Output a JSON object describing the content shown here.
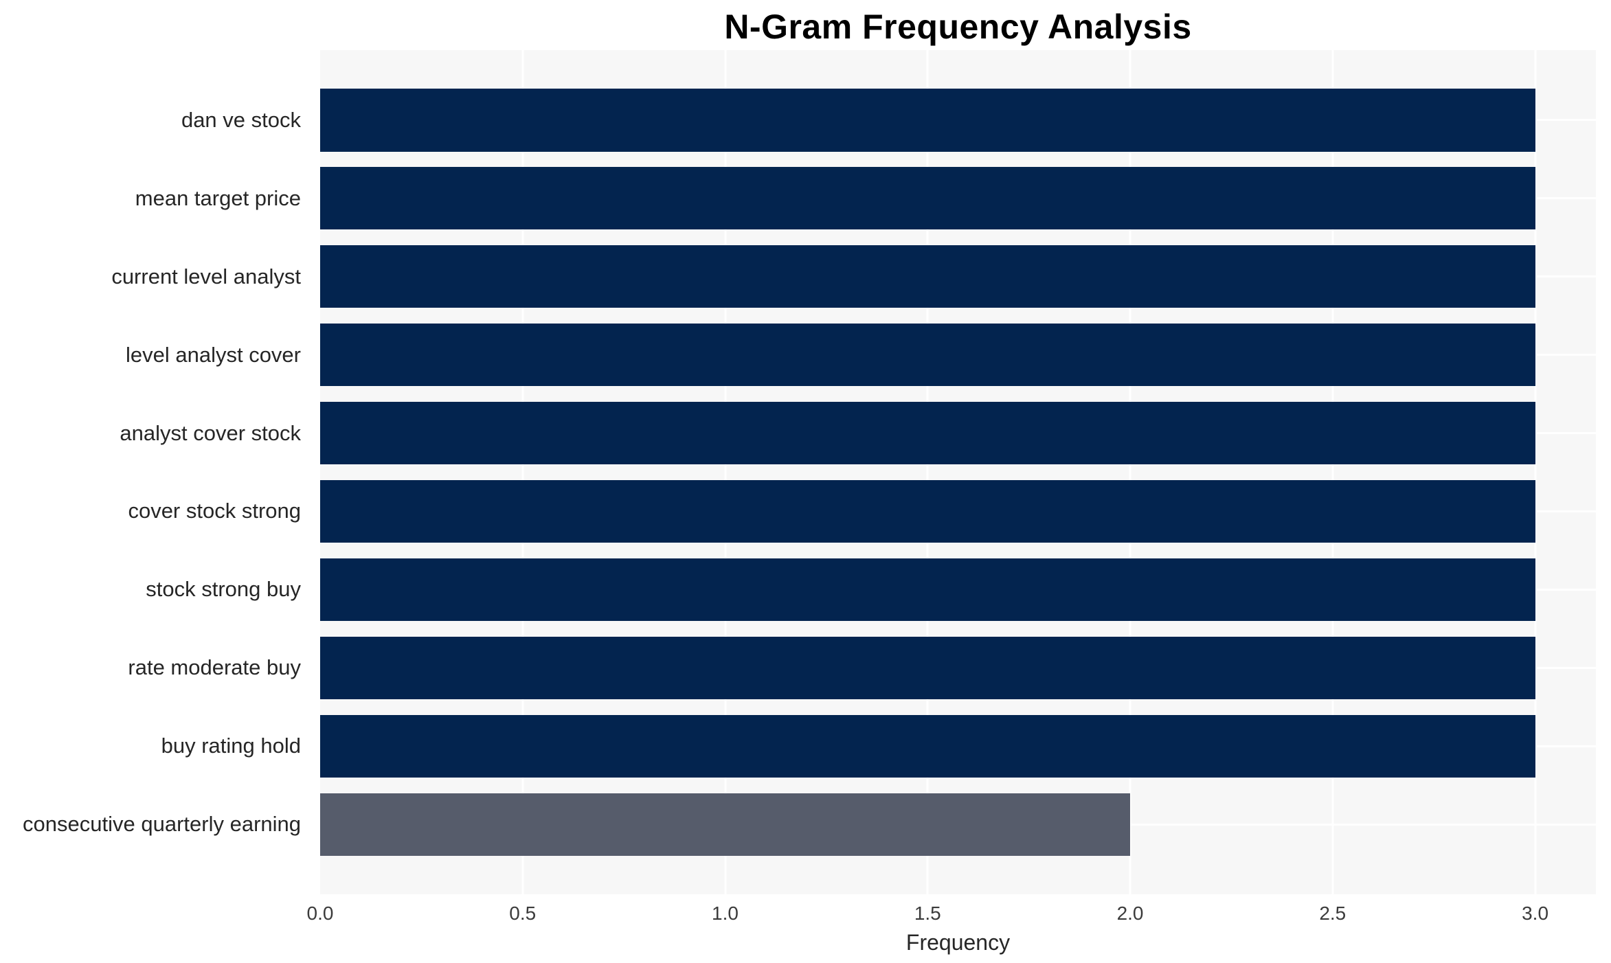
{
  "chart_data": {
    "type": "bar",
    "orientation": "horizontal",
    "title": "N-Gram Frequency Analysis",
    "categories": [
      "dan ve stock",
      "mean target price",
      "current level analyst",
      "level analyst cover",
      "analyst cover stock",
      "cover stock strong",
      "stock strong buy",
      "rate moderate buy",
      "buy rating hold",
      "consecutive quarterly earning"
    ],
    "values": [
      3,
      3,
      3,
      3,
      3,
      3,
      3,
      3,
      3,
      2
    ],
    "bar_colors": [
      "#03244f",
      "#03244f",
      "#03244f",
      "#03244f",
      "#03244f",
      "#03244f",
      "#03244f",
      "#03244f",
      "#03244f",
      "#565c6b"
    ],
    "xlabel": "Frequency",
    "ylabel": "",
    "xlim": [
      0,
      3.15
    ],
    "xticks": [
      0.0,
      0.5,
      1.0,
      1.5,
      2.0,
      2.5,
      3.0
    ],
    "xtick_labels": [
      "0.0",
      "0.5",
      "1.0",
      "1.5",
      "2.0",
      "2.5",
      "3.0"
    ],
    "grid": true,
    "legend": false
  },
  "style": {
    "plot_background": "#f7f7f7",
    "figure_background": "#ffffff",
    "grid_color": "#ffffff",
    "primary_bar_color": "#03244f",
    "secondary_bar_color": "#565c6b",
    "title_color": "#000000",
    "label_color": "#262626",
    "tick_color": "#3b3b3b"
  }
}
